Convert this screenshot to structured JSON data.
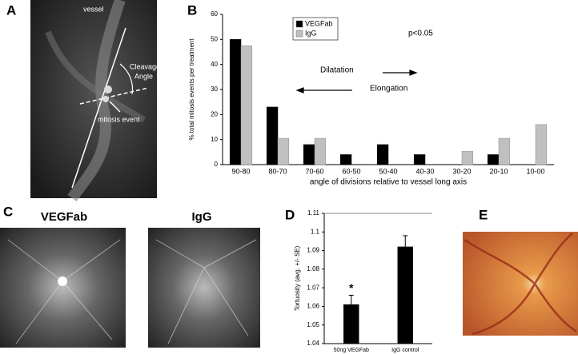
{
  "panel_labels": [
    "A",
    "B",
    "C",
    "D",
    "E"
  ],
  "image_a": {
    "labels": [
      "vessel",
      "Cleavage",
      "Angle",
      "mitosis event"
    ]
  },
  "image_c": {
    "titles": [
      "VEGFab",
      "IgG"
    ]
  },
  "chart_data": [
    {
      "type": "bar",
      "y_label": "% total mitosis events per treatment",
      "x_label": "angle of divisions relative to vessel long axis",
      "categories": [
        "90-80",
        "80-70",
        "70-60",
        "60-50",
        "50-40",
        "40-30",
        "30-20",
        "20-10",
        "10-00"
      ],
      "series": [
        {
          "name": "VEGFab",
          "color": "#000000",
          "values": [
            50,
            23,
            8,
            4,
            8,
            4,
            0,
            4,
            0
          ]
        },
        {
          "name": "IgG",
          "color": "#c0c0c0",
          "values": [
            47.5,
            10.5,
            10.5,
            0,
            0,
            0,
            5.3,
            10.5,
            16
          ]
        }
      ],
      "ylim": [
        0,
        60
      ],
      "yticks": [
        0,
        10,
        20,
        30,
        40,
        50,
        60
      ],
      "legend": "upper-left",
      "annotations": [
        "p<0.05",
        "Dilatation",
        "Elongation"
      ]
    },
    {
      "type": "bar",
      "y_label": "Tortuosity (avg. +/- SE)",
      "categories": [
        "50ng VEGFab",
        "IgG control"
      ],
      "values": [
        1.061,
        1.092
      ],
      "errors": [
        0.005,
        0.006
      ],
      "color": "#000000",
      "ylim": [
        1.04,
        1.11
      ],
      "yticks": [
        1.04,
        1.05,
        1.06,
        1.07,
        1.08,
        1.09,
        1.1,
        1.11
      ],
      "annotations": [
        "*"
      ]
    }
  ]
}
